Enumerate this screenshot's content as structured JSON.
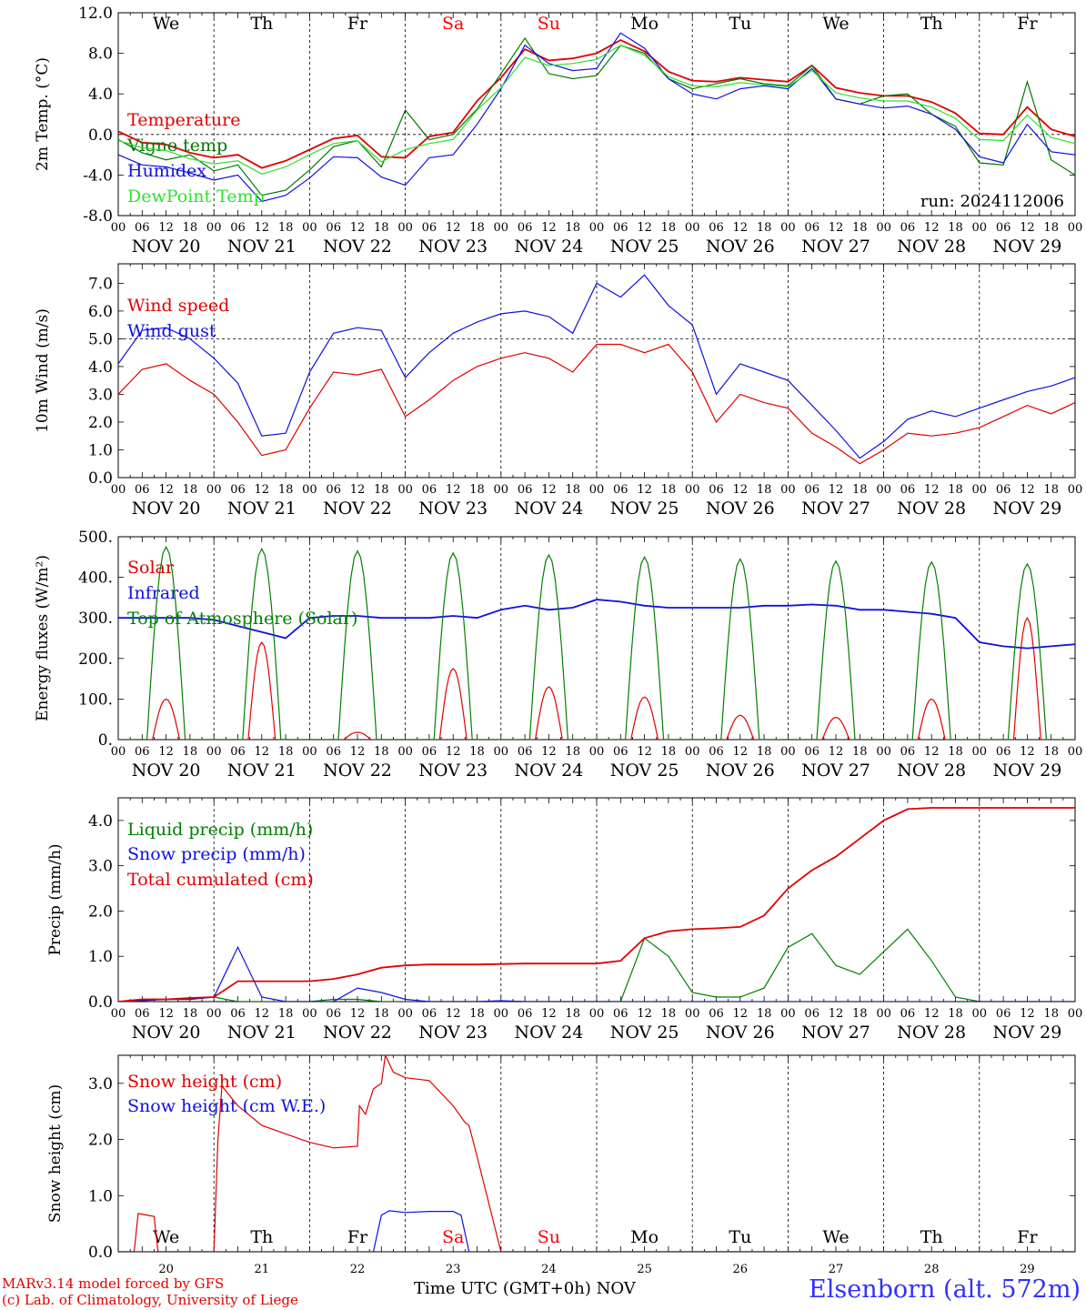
{
  "run_label": "run: 2024112006",
  "footer": {
    "credit_line1": "MARv3.14 model forced by GFS",
    "credit_line2": "(c) Lab. of Climatology, University of Liege",
    "station": "Elsenborn (alt. 572m)",
    "xaxis_title": "Time UTC (GMT+0h) NOV"
  },
  "day_names": [
    "We",
    "Th",
    "Fr",
    "Sa",
    "Su",
    "Mo",
    "Tu",
    "We",
    "Th",
    "Fr"
  ],
  "weekend_color": "#ff0000",
  "date_labels": [
    "NOV 20",
    "NOV 21",
    "NOV 22",
    "NOV 23",
    "NOV 24",
    "NOV 25",
    "NOV 26",
    "NOV 27",
    "NOV 28",
    "NOV 29"
  ],
  "bottom_dates": [
    "20",
    "21",
    "22",
    "23",
    "24",
    "25",
    "26",
    "27",
    "28",
    "29"
  ],
  "hour_ticks": [
    "00",
    "06",
    "12",
    "18"
  ],
  "chart_data": [
    {
      "type": "line",
      "ylabel": "2m Temp. (°C)",
      "ylim": [
        -8,
        12
      ],
      "yticks": [
        "-8.0",
        "-4.0",
        "0.0",
        "4.0",
        "8.0",
        "12.0"
      ],
      "reference_line": 0,
      "x_hours": [
        0,
        6,
        12,
        18,
        24,
        30,
        36,
        42,
        48,
        54,
        60,
        66,
        72,
        78,
        84,
        90,
        96,
        102,
        108,
        114,
        120,
        126,
        132,
        138,
        144,
        150,
        156,
        162,
        168,
        174,
        180,
        186,
        192,
        198,
        204,
        210,
        216,
        222,
        228,
        234,
        240
      ],
      "series": [
        {
          "name": "Temperature",
          "color": "#e00000",
          "values": [
            0.3,
            -0.8,
            -1.0,
            -1.8,
            -2.3,
            -2.0,
            -3.3,
            -2.6,
            -1.5,
            -0.4,
            -0.1,
            -2.2,
            -2.3,
            -0.2,
            0.2,
            3.3,
            5.6,
            8.4,
            7.3,
            7.5,
            8.0,
            9.3,
            8.2,
            6.2,
            5.3,
            5.2,
            5.6,
            5.4,
            5.2,
            6.8,
            4.6,
            4.1,
            3.8,
            3.8,
            3.2,
            2.1,
            0.1,
            0.0,
            2.7,
            0.5,
            -0.2
          ]
        },
        {
          "name": "Vigne temp",
          "color": "#007700",
          "values": [
            -0.5,
            -1.8,
            -2.5,
            -2.0,
            -3.6,
            -3.0,
            -6.0,
            -5.5,
            -3.5,
            -1.2,
            -0.6,
            -3.2,
            2.4,
            -0.5,
            0.0,
            2.5,
            6.0,
            9.5,
            6.0,
            5.5,
            5.8,
            8.8,
            8.0,
            5.5,
            4.5,
            5.0,
            5.5,
            5.0,
            4.8,
            6.8,
            3.5,
            3.0,
            3.8,
            4.0,
            2.0,
            0.8,
            -2.8,
            -3.0,
            5.2,
            -2.5,
            -4.0
          ]
        },
        {
          "name": "Humidex",
          "color": "#1010e0",
          "values": [
            -2.0,
            -3.0,
            -3.2,
            -3.8,
            -4.5,
            -4.0,
            -6.6,
            -6.0,
            -4.3,
            -2.2,
            -2.3,
            -4.2,
            -5.0,
            -2.3,
            -2.0,
            1.0,
            4.5,
            8.8,
            7.0,
            6.3,
            6.5,
            10.0,
            8.5,
            5.5,
            4.0,
            3.5,
            4.5,
            4.8,
            4.5,
            6.5,
            3.5,
            3.0,
            2.6,
            2.8,
            2.0,
            0.5,
            -2.2,
            -2.8,
            1.0,
            -1.7,
            -2.0
          ]
        },
        {
          "name": "DewPoint Temp",
          "color": "#30e030",
          "values": [
            -0.6,
            -1.3,
            -1.6,
            -2.4,
            -2.9,
            -2.6,
            -3.9,
            -3.2,
            -2.0,
            -0.9,
            -0.6,
            -2.7,
            -1.5,
            -0.9,
            -0.5,
            2.4,
            4.6,
            7.6,
            6.8,
            7.0,
            7.4,
            8.8,
            7.8,
            5.7,
            4.8,
            4.7,
            5.1,
            4.9,
            4.7,
            6.3,
            4.1,
            3.6,
            3.3,
            3.3,
            2.7,
            1.6,
            -0.5,
            -0.6,
            1.9,
            -0.3,
            -0.9
          ]
        }
      ]
    },
    {
      "type": "line",
      "ylabel": "10m Wind (m/s)",
      "ylim": [
        0,
        7.7
      ],
      "yticks": [
        "0.0",
        "1.0",
        "2.0",
        "3.0",
        "4.0",
        "5.0",
        "6.0",
        "7.0"
      ],
      "reference_line": 5,
      "x_hours": [
        0,
        6,
        12,
        18,
        24,
        30,
        36,
        42,
        48,
        54,
        60,
        66,
        72,
        78,
        84,
        90,
        96,
        102,
        108,
        114,
        120,
        126,
        132,
        138,
        144,
        150,
        156,
        162,
        168,
        174,
        180,
        186,
        192,
        198,
        204,
        210,
        216,
        222,
        228,
        234,
        240
      ],
      "series": [
        {
          "name": "Wind speed",
          "color": "#e00000",
          "values": [
            3.0,
            3.9,
            4.1,
            3.5,
            3.0,
            2.0,
            0.8,
            1.0,
            2.5,
            3.8,
            3.7,
            3.9,
            2.2,
            2.8,
            3.5,
            4.0,
            4.3,
            4.5,
            4.3,
            3.8,
            4.8,
            4.8,
            4.5,
            4.8,
            3.8,
            2.0,
            3.0,
            2.7,
            2.5,
            1.6,
            1.1,
            0.5,
            1.0,
            1.6,
            1.5,
            1.6,
            1.8,
            2.2,
            2.6,
            2.3,
            2.7
          ]
        },
        {
          "name": "Wind gust",
          "color": "#1010e0",
          "values": [
            4.1,
            5.3,
            5.4,
            5.0,
            4.3,
            3.4,
            1.5,
            1.6,
            3.8,
            5.2,
            5.4,
            5.3,
            3.6,
            4.5,
            5.2,
            5.6,
            5.9,
            6.0,
            5.8,
            5.2,
            7.0,
            6.5,
            7.3,
            6.2,
            5.5,
            3.0,
            4.1,
            3.8,
            3.5,
            2.6,
            1.7,
            0.7,
            1.3,
            2.1,
            2.4,
            2.2,
            2.5,
            2.8,
            3.1,
            3.3,
            3.6
          ]
        }
      ]
    },
    {
      "type": "line",
      "ylabel": "Energy fluxes (W/m²)",
      "ylim": [
        0,
        500
      ],
      "yticks": [
        "0.",
        "100.",
        "200.",
        "300.",
        "400.",
        "500."
      ],
      "series": [
        {
          "name": "Solar",
          "color": "#e00000",
          "peaks": [
            100,
            240,
            18,
            175,
            130,
            105,
            60,
            55,
            100,
            300
          ]
        },
        {
          "name": "Infrared",
          "color": "#1010e0",
          "x_hours": [
            0,
            6,
            12,
            18,
            24,
            30,
            36,
            42,
            48,
            54,
            60,
            66,
            72,
            78,
            84,
            90,
            96,
            102,
            108,
            114,
            120,
            126,
            132,
            138,
            144,
            150,
            156,
            162,
            168,
            174,
            180,
            186,
            192,
            198,
            204,
            210,
            216,
            222,
            228,
            234,
            240
          ],
          "values": [
            300,
            300,
            300,
            300,
            295,
            280,
            265,
            250,
            300,
            305,
            305,
            300,
            300,
            300,
            305,
            300,
            320,
            330,
            320,
            325,
            345,
            340,
            330,
            325,
            325,
            325,
            325,
            330,
            330,
            333,
            330,
            320,
            320,
            315,
            310,
            300,
            240,
            230,
            225,
            230,
            235
          ]
        },
        {
          "name": "Top of Atmosphere (Solar)",
          "color": "#008000",
          "peaks": [
            475,
            470,
            465,
            460,
            455,
            450,
            445,
            440,
            438,
            433
          ]
        }
      ]
    },
    {
      "type": "line",
      "ylabel": "Precip (mm/h)",
      "ylim": [
        0,
        4.5
      ],
      "yticks": [
        "0.0",
        "1.0",
        "2.0",
        "3.0",
        "4.0"
      ],
      "x_hours": [
        0,
        6,
        12,
        18,
        24,
        30,
        36,
        42,
        48,
        54,
        60,
        66,
        72,
        78,
        84,
        90,
        96,
        102,
        108,
        114,
        120,
        126,
        132,
        138,
        144,
        150,
        156,
        162,
        168,
        174,
        180,
        186,
        192,
        198,
        204,
        210,
        216,
        222,
        228,
        234,
        240
      ],
      "series": [
        {
          "name": "Liquid precip (mm/h)",
          "color": "#008000",
          "values": [
            0.0,
            0.05,
            0.05,
            0.05,
            0.1,
            0.0,
            0.0,
            0.0,
            0.0,
            0.05,
            0.05,
            0.0,
            0.0,
            0.0,
            0.0,
            0.0,
            0.0,
            0.0,
            0.0,
            0.0,
            0.0,
            0.0,
            1.4,
            1.0,
            0.2,
            0.1,
            0.1,
            0.3,
            1.2,
            1.5,
            0.8,
            0.6,
            1.1,
            1.6,
            0.9,
            0.1,
            0.0,
            0.0,
            0.0,
            0.0,
            0.0
          ]
        },
        {
          "name": "Snow precip (mm/h)",
          "color": "#1010e0",
          "values": [
            0.0,
            0.02,
            0.05,
            0.05,
            0.1,
            1.2,
            0.1,
            0.0,
            0.0,
            0.0,
            0.3,
            0.2,
            0.05,
            0.0,
            0.0,
            0.0,
            0.02,
            0.0,
            0.0,
            0.0,
            0.0,
            0.0,
            0.0,
            0.0,
            0.0,
            0.0,
            0.0,
            0.0,
            0.0,
            0.0,
            0.0,
            0.0,
            0.0,
            0.0,
            0.0,
            0.0,
            0.0,
            0.0,
            0.0,
            0.0,
            0.0
          ]
        },
        {
          "name": "Total cumulated (cm)",
          "color": "#e00000",
          "values": [
            0.0,
            0.05,
            0.05,
            0.08,
            0.1,
            0.45,
            0.45,
            0.45,
            0.45,
            0.5,
            0.6,
            0.75,
            0.8,
            0.82,
            0.82,
            0.82,
            0.83,
            0.84,
            0.84,
            0.84,
            0.84,
            0.9,
            1.4,
            1.55,
            1.6,
            1.62,
            1.65,
            1.9,
            2.5,
            2.9,
            3.2,
            3.6,
            4.0,
            4.25,
            4.28,
            4.28,
            4.28,
            4.28,
            4.28,
            4.28,
            4.28
          ]
        }
      ]
    },
    {
      "type": "line",
      "ylabel": "Snow height (cm)",
      "ylim": [
        0,
        3.5
      ],
      "yticks": [
        "0.0",
        "1.0",
        "2.0",
        "3.0"
      ],
      "series": [
        {
          "name": "Snow height (cm)",
          "color": "#e00000",
          "x_hours": [
            0,
            4,
            5,
            9,
            10,
            24,
            25,
            26,
            30,
            36,
            42,
            48,
            54,
            60,
            60.5,
            62,
            64,
            66,
            67,
            69,
            72,
            78,
            84,
            87,
            88,
            90,
            96,
            240
          ],
          "values": [
            0.0,
            0.0,
            0.68,
            0.63,
            0.0,
            0.0,
            2.0,
            2.95,
            2.6,
            2.25,
            2.1,
            1.95,
            1.85,
            1.88,
            2.6,
            2.45,
            2.9,
            3.0,
            3.5,
            3.2,
            3.1,
            3.05,
            2.6,
            2.3,
            2.25,
            1.7,
            0.0,
            0.0
          ]
        },
        {
          "name": "Snow height (cm W.E.)",
          "color": "#1010e0",
          "x_hours": [
            0,
            64,
            66,
            68,
            72,
            78,
            84,
            86,
            88,
            240
          ],
          "values": [
            0.0,
            0.0,
            0.65,
            0.73,
            0.7,
            0.72,
            0.72,
            0.65,
            0.0,
            0.0
          ]
        }
      ]
    }
  ]
}
